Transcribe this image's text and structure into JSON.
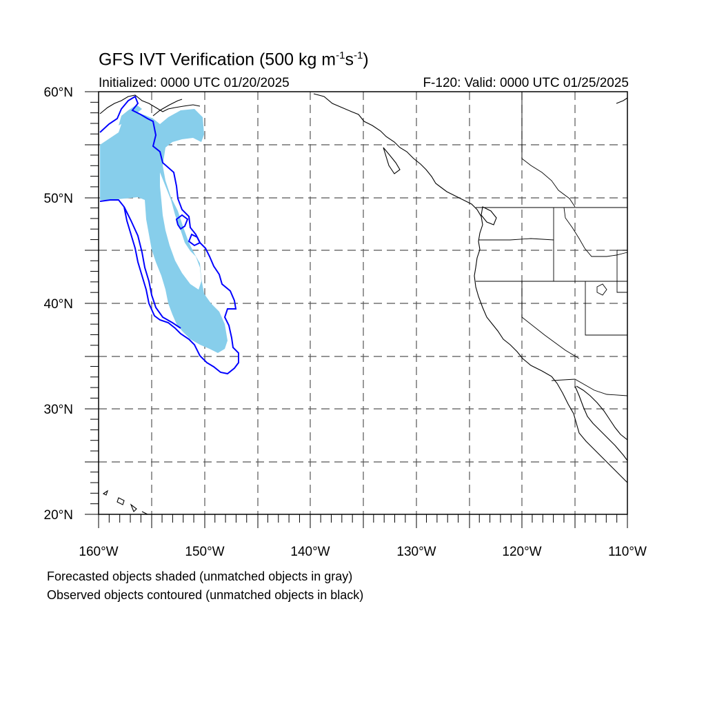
{
  "title": {
    "prefix": "GFS IVT Verification (500 kg m",
    "exp1": "-1",
    "mid": "s",
    "exp2": "-1",
    "suffix": ")"
  },
  "initialized": "Initialized: 0000 UTC 01/20/2025",
  "valid": "F-120: Valid: 0000 UTC 01/25/2025",
  "footnote_forecast": "Forecasted objects shaded (unmatched objects in gray)",
  "footnote_observed": "Observed objects contoured (unmatched objects in black)",
  "map": {
    "lon_range": [
      -160,
      -110
    ],
    "lat_range": [
      20,
      60
    ],
    "lon_labels": [
      "160°W",
      "150°W",
      "140°W",
      "130°W",
      "120°W",
      "110°W"
    ],
    "lat_labels": [
      "60°N",
      "50°N",
      "40°N",
      "30°N",
      "20°N"
    ],
    "gridlines": "dashed every 5°",
    "forecast_fill_color": "#87ceeb",
    "observed_contour_color": "#0000ff",
    "coastline_color": "#000000"
  }
}
